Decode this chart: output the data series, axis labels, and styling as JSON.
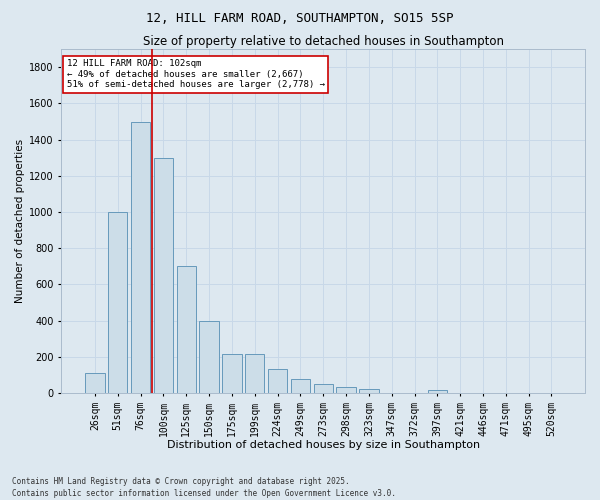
{
  "title": "12, HILL FARM ROAD, SOUTHAMPTON, SO15 5SP",
  "subtitle": "Size of property relative to detached houses in Southampton",
  "xlabel": "Distribution of detached houses by size in Southampton",
  "ylabel": "Number of detached properties",
  "categories": [
    "26sqm",
    "51sqm",
    "76sqm",
    "100sqm",
    "125sqm",
    "150sqm",
    "175sqm",
    "199sqm",
    "224sqm",
    "249sqm",
    "273sqm",
    "298sqm",
    "323sqm",
    "347sqm",
    "372sqm",
    "397sqm",
    "421sqm",
    "446sqm",
    "471sqm",
    "495sqm",
    "520sqm"
  ],
  "values": [
    110,
    1000,
    1500,
    1300,
    700,
    400,
    215,
    215,
    130,
    75,
    50,
    32,
    22,
    0,
    0,
    15,
    0,
    0,
    0,
    0,
    0
  ],
  "bar_color": "#ccdde8",
  "bar_edge_color": "#6699bb",
  "vline_x_index": 2.5,
  "vline_color": "#cc0000",
  "annotation_text": "12 HILL FARM ROAD: 102sqm\n← 49% of detached houses are smaller (2,667)\n51% of semi-detached houses are larger (2,778) →",
  "annotation_box_edge_color": "#cc0000",
  "ylim": [
    0,
    1900
  ],
  "yticks": [
    0,
    200,
    400,
    600,
    800,
    1000,
    1200,
    1400,
    1600,
    1800
  ],
  "grid_color": "#c8d8e8",
  "background_color": "#dde8f0",
  "footnote": "Contains HM Land Registry data © Crown copyright and database right 2025.\nContains public sector information licensed under the Open Government Licence v3.0.",
  "title_fontsize": 9,
  "subtitle_fontsize": 8.5,
  "xlabel_fontsize": 8,
  "ylabel_fontsize": 7.5,
  "tick_fontsize": 7,
  "footnote_fontsize": 5.5
}
